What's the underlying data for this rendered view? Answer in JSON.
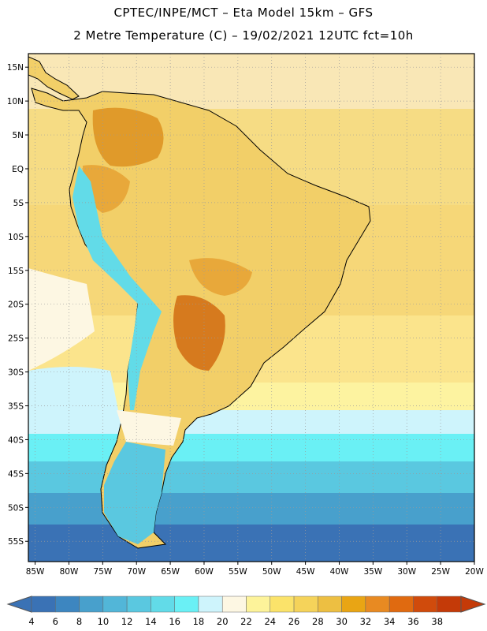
{
  "header": {
    "line1": "CPTEC/INPE/MCT –  Eta Model 15km – GFS",
    "line2": "2 Metre Temperature (C) – 19/02/2021 12UTC fct=10h"
  },
  "map": {
    "region": "South America",
    "lat_labels": [
      "15N",
      "10N",
      "5N",
      "EQ",
      "5S",
      "10S",
      "15S",
      "20S",
      "25S",
      "30S",
      "35S",
      "40S",
      "45S",
      "50S",
      "55S"
    ],
    "lat_values": [
      15,
      10,
      5,
      0,
      -5,
      -10,
      -15,
      -20,
      -25,
      -30,
      -35,
      -40,
      -45,
      -50,
      -55
    ],
    "lon_labels": [
      "85W",
      "80W",
      "75W",
      "70W",
      "65W",
      "60W",
      "55W",
      "50W",
      "45W",
      "40W",
      "35W",
      "30W",
      "25W",
      "20W"
    ],
    "lon_values": [
      -85,
      -80,
      -75,
      -70,
      -65,
      -60,
      -55,
      -50,
      -45,
      -40,
      -35,
      -30,
      -25,
      -20
    ],
    "lat_range": [
      -58,
      17
    ],
    "lon_range": [
      -86,
      -20
    ]
  },
  "colorbar": {
    "labels": [
      "4",
      "6",
      "8",
      "10",
      "12",
      "14",
      "16",
      "18",
      "20",
      "22",
      "24",
      "26",
      "28",
      "30",
      "32",
      "34",
      "36",
      "38"
    ],
    "colors": [
      "#3a72b5",
      "#3d86c0",
      "#48a0cc",
      "#52b6d8",
      "#5ac8e0",
      "#62dbe8",
      "#6af0f5",
      "#cef4fc",
      "#fdf7e3",
      "#fdf39a",
      "#fbe36a",
      "#f5d35a",
      "#edbf42",
      "#e9a514",
      "#e88a22",
      "#e06a10",
      "#d04b0c",
      "#c43a08"
    ]
  }
}
